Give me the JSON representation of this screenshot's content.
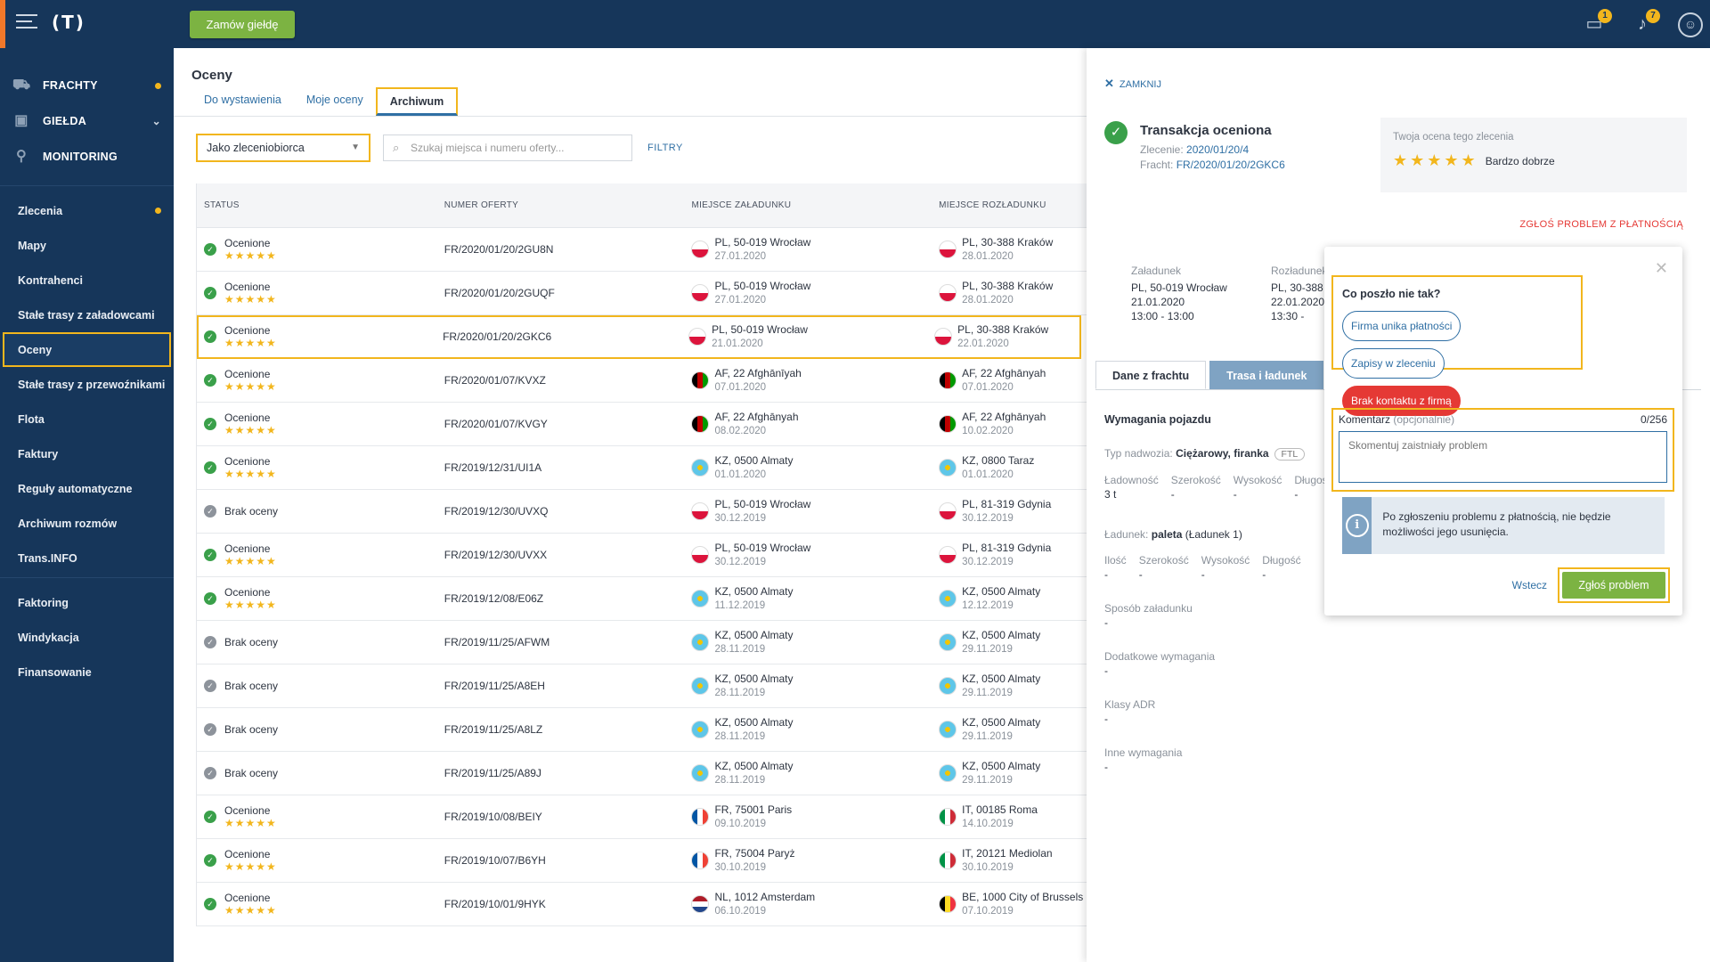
{
  "header": {
    "logo": "(T)",
    "order_button": "Zamów giełdę",
    "messages_badge": "1",
    "notifications_badge": "7"
  },
  "sidebar": {
    "main": [
      {
        "label": "FRACHTY",
        "icon": "cart-icon",
        "dot": true
      },
      {
        "label": "GIEŁDA",
        "icon": "cube-icon",
        "chevron": true
      },
      {
        "label": "MONITORING",
        "icon": "satellite-icon"
      }
    ],
    "sub": [
      "Zlecenia",
      "Mapy",
      "Kontrahenci",
      "Stałe trasy z załadowcami",
      "Oceny",
      "Stałe trasy z przewoźnikami",
      "Flota",
      "Faktury",
      "Reguły automatyczne",
      "Archiwum rozmów",
      "Trans.INFO"
    ],
    "finance": [
      "Faktoring",
      "Windykacja",
      "Finansowanie"
    ]
  },
  "page": {
    "title": "Oceny",
    "tabs": [
      "Do wystawienia",
      "Moje oceny",
      "Archiwum"
    ],
    "role_select": "Jako zleceniobiorca",
    "search_placeholder": "Szukaj miejsca i numeru oferty...",
    "filters": "FILTRY"
  },
  "table": {
    "headers": [
      "STATUS",
      "NUMER OFERTY",
      "MIEJSCE ZAŁADUNKU",
      "MIEJSCE ROZŁADUNKU"
    ],
    "rows": [
      {
        "status": "Ocenione",
        "rated": true,
        "offer": "FR/2020/01/20/2GU8N",
        "load": "PL, 50-019 Wrocław",
        "load_date": "27.01.2020",
        "load_flag": "pl",
        "unload": "PL, 30-388 Kraków",
        "unload_date": "28.01.2020",
        "unload_flag": "pl"
      },
      {
        "status": "Ocenione",
        "rated": true,
        "offer": "FR/2020/01/20/2GUQF",
        "load": "PL, 50-019 Wrocław",
        "load_date": "27.01.2020",
        "load_flag": "pl",
        "unload": "PL, 30-388 Kraków",
        "unload_date": "28.01.2020",
        "unload_flag": "pl"
      },
      {
        "status": "Ocenione",
        "rated": true,
        "offer": "FR/2020/01/20/2GKC6",
        "load": "PL, 50-019 Wrocław",
        "load_date": "21.01.2020",
        "load_flag": "pl",
        "unload": "PL, 30-388 Kraków",
        "unload_date": "22.01.2020",
        "unload_flag": "pl",
        "highlight": true
      },
      {
        "status": "Ocenione",
        "rated": true,
        "offer": "FR/2020/01/07/KVXZ",
        "load": "AF, 22 Afghānīyah",
        "load_date": "07.01.2020",
        "load_flag": "af",
        "unload": "AF, 22 Afghānyah",
        "unload_date": "07.01.2020",
        "unload_flag": "af"
      },
      {
        "status": "Ocenione",
        "rated": true,
        "offer": "FR/2020/01/07/KVGY",
        "load": "AF, 22 Afghānyah",
        "load_date": "08.02.2020",
        "load_flag": "af",
        "unload": "AF, 22 Afghānyah",
        "unload_date": "10.02.2020",
        "unload_flag": "af"
      },
      {
        "status": "Ocenione",
        "rated": true,
        "offer": "FR/2019/12/31/UI1A",
        "load": "KZ, 0500 Almaty",
        "load_date": "01.01.2020",
        "load_flag": "kz",
        "unload": "KZ, 0800 Taraz",
        "unload_date": "01.01.2020",
        "unload_flag": "kz"
      },
      {
        "status": "Brak oceny",
        "rated": false,
        "offer": "FR/2019/12/30/UVXQ",
        "load": "PL, 50-019 Wrocław",
        "load_date": "30.12.2019",
        "load_flag": "pl",
        "unload": "PL, 81-319 Gdynia",
        "unload_date": "30.12.2019",
        "unload_flag": "pl"
      },
      {
        "status": "Ocenione",
        "rated": true,
        "offer": "FR/2019/12/30/UVXX",
        "load": "PL, 50-019 Wrocław",
        "load_date": "30.12.2019",
        "load_flag": "pl",
        "unload": "PL, 81-319 Gdynia",
        "unload_date": "30.12.2019",
        "unload_flag": "pl"
      },
      {
        "status": "Ocenione",
        "rated": true,
        "offer": "FR/2019/12/08/E06Z",
        "load": "KZ, 0500 Almaty",
        "load_date": "11.12.2019",
        "load_flag": "kz",
        "unload": "KZ, 0500 Almaty",
        "unload_date": "12.12.2019",
        "unload_flag": "kz"
      },
      {
        "status": "Brak oceny",
        "rated": false,
        "offer": "FR/2019/11/25/AFWM",
        "load": "KZ, 0500 Almaty",
        "load_date": "28.11.2019",
        "load_flag": "kz",
        "unload": "KZ, 0500 Almaty",
        "unload_date": "29.11.2019",
        "unload_flag": "kz"
      },
      {
        "status": "Brak oceny",
        "rated": false,
        "offer": "FR/2019/11/25/A8EH",
        "load": "KZ, 0500 Almaty",
        "load_date": "28.11.2019",
        "load_flag": "kz",
        "unload": "KZ, 0500 Almaty",
        "unload_date": "29.11.2019",
        "unload_flag": "kz"
      },
      {
        "status": "Brak oceny",
        "rated": false,
        "offer": "FR/2019/11/25/A8LZ",
        "load": "KZ, 0500 Almaty",
        "load_date": "28.11.2019",
        "load_flag": "kz",
        "unload": "KZ, 0500 Almaty",
        "unload_date": "29.11.2019",
        "unload_flag": "kz"
      },
      {
        "status": "Brak oceny",
        "rated": false,
        "offer": "FR/2019/11/25/A89J",
        "load": "KZ, 0500 Almaty",
        "load_date": "28.11.2019",
        "load_flag": "kz",
        "unload": "KZ, 0500 Almaty",
        "unload_date": "29.11.2019",
        "unload_flag": "kz"
      },
      {
        "status": "Ocenione",
        "rated": true,
        "offer": "FR/2019/10/08/BEIY",
        "load": "FR, 75001 Paris",
        "load_date": "09.10.2019",
        "load_flag": "fr",
        "unload": "IT, 00185 Roma",
        "unload_date": "14.10.2019",
        "unload_flag": "it"
      },
      {
        "status": "Ocenione",
        "rated": true,
        "offer": "FR/2019/10/07/B6YH",
        "load": "FR, 75004 Paryż",
        "load_date": "30.10.2019",
        "load_flag": "fr",
        "unload": "IT, 20121 Mediolan",
        "unload_date": "30.10.2019",
        "unload_flag": "it"
      },
      {
        "status": "Ocenione",
        "rated": true,
        "offer": "FR/2019/10/01/9HYK",
        "load": "NL, 1012 Amsterdam",
        "load_date": "06.10.2019",
        "load_flag": "nl",
        "unload": "BE, 1000 City of Brussels",
        "unload_date": "07.10.2019",
        "unload_flag": "be"
      }
    ]
  },
  "stars": "★★★★★",
  "panel": {
    "close": "ZAMKNIJ",
    "title": "Transakcja oceniona",
    "order_label": "Zlecenie:",
    "order_value": "2020/01/20/4",
    "freight_label": "Fracht:",
    "freight_value": "FR/2020/01/20/2GKC6",
    "your_rating_label": "Twoja ocena tego zlecenia",
    "your_rating_text": "Bardzo dobrze",
    "report_link": "ZGŁOŚ PROBLEM Z PŁATNOŚCIĄ",
    "load_label": "Załadunek",
    "load_place": "PL, 50-019 Wrocław",
    "load_date": "21.01.2020",
    "load_time": "13:00 - 13:00",
    "unload_label": "Rozładunek",
    "unload_place": "PL, 30-388",
    "unload_date": "22.01.2020",
    "unload_time": "13:30 -",
    "tabs": [
      "Dane z frachtu",
      "Trasa i ładunek"
    ],
    "vehicle_heading": "Wymagania pojazdu",
    "body_type_label": "Typ nadwozia:",
    "body_type_value": "Ciężarowy, firanka",
    "ftl": "FTL",
    "vehicle_grid": [
      {
        "l": "Ładowność",
        "v": "3 t"
      },
      {
        "l": "Szerokość",
        "v": "-"
      },
      {
        "l": "Wysokość",
        "v": "-"
      },
      {
        "l": "Długość",
        "v": "-"
      }
    ],
    "cargo_label": "Ładunek:",
    "cargo_value": "paleta",
    "cargo_extra": "(Ładunek 1)",
    "cargo_grid": [
      {
        "l": "Ilość",
        "v": "-"
      },
      {
        "l": "Szerokość",
        "v": "-"
      },
      {
        "l": "Wysokość",
        "v": "-"
      },
      {
        "l": "Długość",
        "v": "-"
      }
    ],
    "blocks": [
      {
        "l": "Sposób załadunku",
        "v": "-"
      },
      {
        "l": "Dodatkowe wymagania",
        "v": "-"
      },
      {
        "l": "Klasy ADR",
        "v": "-"
      },
      {
        "l": "Inne wymagania",
        "v": "-"
      }
    ]
  },
  "modal": {
    "question": "Co poszło nie tak?",
    "options": [
      "Firma unika płatności",
      "Zapisy w zleceniu",
      "Brak kontaktu z firmą"
    ],
    "comment_label": "Komentarz",
    "comment_optional": "(opcjonalnie)",
    "counter": "0/256",
    "comment_placeholder": "Skomentuj zaistniały problem",
    "info": "Po zgłoszeniu problemu z płatnością, nie będzie możliwości jego usunięcia.",
    "back": "Wstecz",
    "submit": "Zgłoś problem"
  },
  "colors": {
    "navy": "#16365a",
    "accent": "#f2b61d",
    "green": "#7cb342",
    "red": "#e53935",
    "link": "#2f6fa4"
  }
}
